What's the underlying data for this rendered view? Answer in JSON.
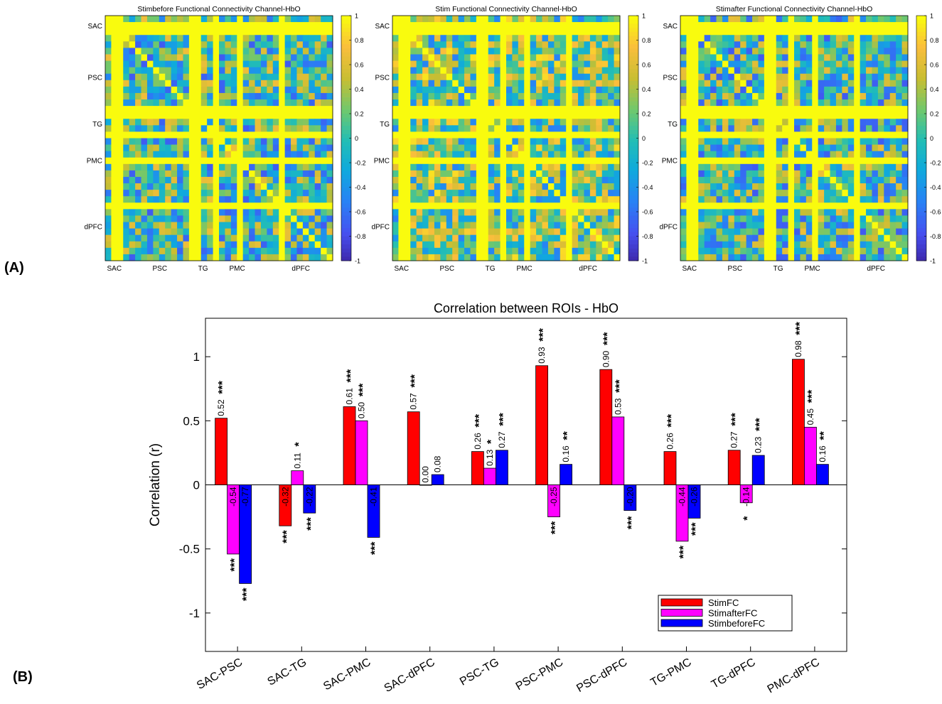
{
  "panel_labels": {
    "a": "(A)",
    "b": "(B)"
  },
  "colors": {
    "stim": "#ff0000",
    "stimafter": "#ff00ff",
    "stimbefore": "#0000ff",
    "diagonal": "#f9fb0e"
  },
  "chart_data": [
    {
      "type": "heatmap",
      "title": "Stimbefore Functional Connectivity Channel-HbO",
      "row_labels": [
        "SAC",
        "PSC",
        "TG",
        "PMC",
        "dPFC"
      ],
      "col_labels": [
        "SAC",
        "PSC",
        "TG",
        "PMC",
        "dPFC"
      ],
      "colorbar_ticks": [
        "1",
        "0.8",
        "0.6",
        "0.4",
        "0.2",
        "0",
        "-0.2",
        "-0.4",
        "-0.6",
        "-0.8",
        "-1"
      ],
      "vmin": -1,
      "vmax": 1,
      "colormap": "parula",
      "n_channels": 38,
      "high_corr_channels": [
        1,
        2,
        14,
        15,
        18,
        22,
        29
      ]
    },
    {
      "type": "heatmap",
      "title": "Stim Functional Connectivity Channel-HbO",
      "row_labels": [
        "SAC",
        "PSC",
        "TG",
        "PMC",
        "dPFC"
      ],
      "col_labels": [
        "SAC",
        "PSC",
        "TG",
        "PMC",
        "dPFC"
      ],
      "colorbar_ticks": [
        "1",
        "0.8",
        "0.6",
        "0.4",
        "0.2",
        "0",
        "-0.2",
        "-0.4",
        "-0.6",
        "-0.8",
        "-1"
      ],
      "vmin": -1,
      "vmax": 1,
      "colormap": "parula",
      "n_channels": 38,
      "high_corr_channels": [
        1,
        2,
        14,
        15,
        18,
        22,
        29
      ]
    },
    {
      "type": "heatmap",
      "title": "Stimafter Functional Connectivity Channel-HbO",
      "row_labels": [
        "SAC",
        "PSC",
        "TG",
        "PMC",
        "dPFC"
      ],
      "col_labels": [
        "SAC",
        "PSC",
        "TG",
        "PMC",
        "dPFC"
      ],
      "colorbar_ticks": [
        "1",
        "0.8",
        "0.6",
        "0.4",
        "0.2",
        "0",
        "-0.2",
        "-0.4",
        "-0.6",
        "-0.8",
        "-1"
      ],
      "vmin": -1,
      "vmax": 1,
      "colormap": "parula",
      "n_channels": 38,
      "high_corr_channels": [
        1,
        2,
        14,
        15,
        18,
        22,
        29
      ]
    },
    {
      "type": "bar",
      "title": "Correlation between ROIs - HbO",
      "ylabel": "Correlation (r)",
      "xlabel": "",
      "ylim": [
        -1.3,
        1.3
      ],
      "yticks": [
        {
          "value": 1,
          "label": "1"
        },
        {
          "value": 0.5,
          "label": "0.5"
        },
        {
          "value": 0,
          "label": "0"
        },
        {
          "value": -0.5,
          "label": "-0.5"
        },
        {
          "value": -1,
          "label": "-1"
        }
      ],
      "categories": [
        "SAC-PSC",
        "SAC-TG",
        "SAC-PMC",
        "SAC-dPFC",
        "PSC-TG",
        "PSC-PMC",
        "PSC-dPFC",
        "TG-PMC",
        "TG-dPFC",
        "PMC-dPFC"
      ],
      "series": [
        {
          "name": "StimFC",
          "color": "#ff0000",
          "values": [
            0.52,
            -0.32,
            0.61,
            0.57,
            0.26,
            0.93,
            0.9,
            0.26,
            0.27,
            0.98
          ],
          "labels": [
            "0.52",
            "-0.32",
            "0.61",
            "0.57",
            "0.26",
            "0.93",
            "0.90",
            "0.26",
            "0.27",
            "0.98"
          ],
          "stars": [
            "***",
            "***",
            "***",
            "***",
            "***",
            "***",
            "***",
            "***",
            "***",
            "***"
          ]
        },
        {
          "name": "StimafterFC",
          "color": "#ff00ff",
          "values": [
            -0.54,
            0.11,
            0.5,
            0.0,
            0.13,
            -0.25,
            0.53,
            -0.44,
            -0.14,
            0.45
          ],
          "labels": [
            "-0.54",
            "0.11",
            "0.50",
            "0.00",
            "0.13",
            "-0.25",
            "0.53",
            "-0.44",
            "-0.14",
            "0.45"
          ],
          "stars": [
            "***",
            "*",
            "***",
            "",
            "*",
            "***",
            "***",
            "***",
            "*",
            "***"
          ]
        },
        {
          "name": "StimbeforeFC",
          "color": "#0000ff",
          "values": [
            -0.77,
            -0.22,
            -0.41,
            0.08,
            0.27,
            0.16,
            -0.2,
            -0.26,
            0.23,
            0.16
          ],
          "labels": [
            "-0.77",
            "-0.22",
            "-0.41",
            "0.08",
            "0.27",
            "0.16",
            "-0.20",
            "-0.26",
            "0.23",
            "0.16"
          ],
          "stars": [
            "***",
            "***",
            "***",
            "",
            "***",
            "**",
            "***",
            "***",
            "***",
            "**"
          ]
        }
      ],
      "legend": {
        "position": "bottom-right",
        "entries": [
          "StimFC",
          "StimafterFC",
          "StimbeforeFC"
        ]
      },
      "grid": false
    }
  ]
}
